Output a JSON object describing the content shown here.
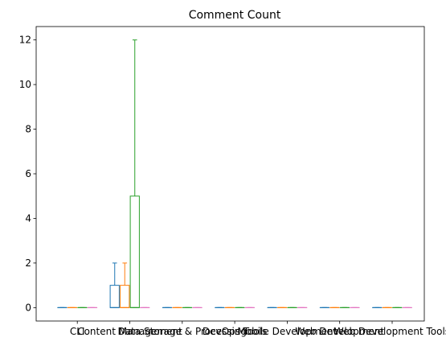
{
  "chart_data": {
    "type": "box",
    "title": "Comment Count",
    "xlabel": "",
    "ylabel": "",
    "ylim": [
      -0.6,
      12.6
    ],
    "yticks": [
      0,
      2,
      4,
      6,
      8,
      10,
      12
    ],
    "grid": false,
    "categories": [
      "CLI",
      "Content Management",
      "Data Storage & Processing",
      "DevOps Tools",
      "Mobile Development",
      "Web Development",
      "Web Development Tools"
    ],
    "series_colors": [
      "#1f77b4",
      "#ff7f0e",
      "#2ca02c",
      "#e377c2"
    ],
    "boxes": [
      [
        {
          "min": 0,
          "q1": 0,
          "median": 0,
          "q3": 0,
          "max": 0
        },
        {
          "min": 0,
          "q1": 0,
          "median": 0,
          "q3": 0,
          "max": 0
        },
        {
          "min": 0,
          "q1": 0,
          "median": 0,
          "q3": 0,
          "max": 0
        },
        {
          "min": 0,
          "q1": 0,
          "median": 0,
          "q3": 0,
          "max": 0
        }
      ],
      [
        {
          "min": 0,
          "q1": 0,
          "median": 0,
          "q3": 1,
          "max": 2
        },
        {
          "min": 0,
          "q1": 0,
          "median": 0,
          "q3": 1,
          "max": 2
        },
        {
          "min": 0,
          "q1": 0,
          "median": 0,
          "q3": 5,
          "max": 12
        },
        {
          "min": 0,
          "q1": 0,
          "median": 0,
          "q3": 0,
          "max": 0
        }
      ],
      [
        {
          "min": 0,
          "q1": 0,
          "median": 0,
          "q3": 0,
          "max": 0
        },
        {
          "min": 0,
          "q1": 0,
          "median": 0,
          "q3": 0,
          "max": 0
        },
        {
          "min": 0,
          "q1": 0,
          "median": 0,
          "q3": 0,
          "max": 0
        },
        {
          "min": 0,
          "q1": 0,
          "median": 0,
          "q3": 0,
          "max": 0
        }
      ],
      [
        {
          "min": 0,
          "q1": 0,
          "median": 0,
          "q3": 0,
          "max": 0
        },
        {
          "min": 0,
          "q1": 0,
          "median": 0,
          "q3": 0,
          "max": 0
        },
        {
          "min": 0,
          "q1": 0,
          "median": 0,
          "q3": 0,
          "max": 0
        },
        {
          "min": 0,
          "q1": 0,
          "median": 0,
          "q3": 0,
          "max": 0
        }
      ],
      [
        {
          "min": 0,
          "q1": 0,
          "median": 0,
          "q3": 0,
          "max": 0
        },
        {
          "min": 0,
          "q1": 0,
          "median": 0,
          "q3": 0,
          "max": 0
        },
        {
          "min": 0,
          "q1": 0,
          "median": 0,
          "q3": 0,
          "max": 0
        },
        {
          "min": 0,
          "q1": 0,
          "median": 0,
          "q3": 0,
          "max": 0
        }
      ],
      [
        {
          "min": 0,
          "q1": 0,
          "median": 0,
          "q3": 0,
          "max": 0
        },
        {
          "min": 0,
          "q1": 0,
          "median": 0,
          "q3": 0,
          "max": 0
        },
        {
          "min": 0,
          "q1": 0,
          "median": 0,
          "q3": 0,
          "max": 0
        },
        {
          "min": 0,
          "q1": 0,
          "median": 0,
          "q3": 0,
          "max": 0
        }
      ],
      [
        {
          "min": 0,
          "q1": 0,
          "median": 0,
          "q3": 0,
          "max": 0
        },
        {
          "min": 0,
          "q1": 0,
          "median": 0,
          "q3": 0,
          "max": 0
        },
        {
          "min": 0,
          "q1": 0,
          "median": 0,
          "q3": 0,
          "max": 0
        },
        {
          "min": 0,
          "q1": 0,
          "median": 0,
          "q3": 0,
          "max": 0
        }
      ]
    ]
  }
}
